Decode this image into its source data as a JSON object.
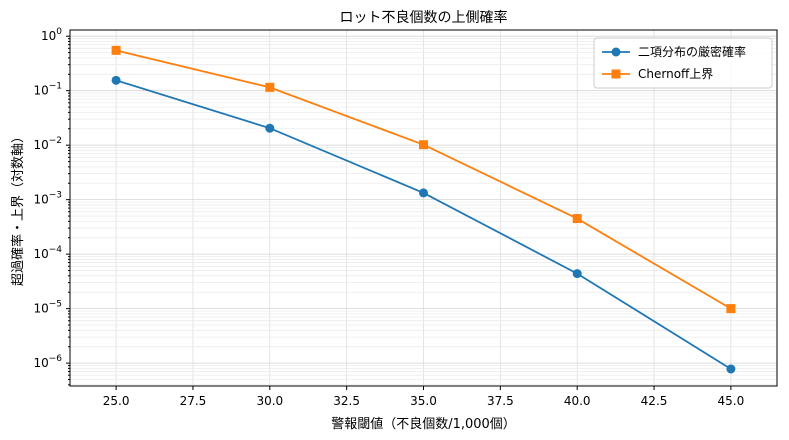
{
  "chart_data": {
    "type": "line",
    "title": "ロット不良個数の上側確率",
    "xlabel": "警報閾値（不良個数/1,000個）",
    "ylabel": "超過確率・上界（対数軸）",
    "x": [
      25.0,
      30.0,
      35.0,
      40.0,
      45.0
    ],
    "xlim": [
      23.5,
      46.5
    ],
    "xticks": [
      25.0,
      27.5,
      30.0,
      32.5,
      35.0,
      37.5,
      40.0,
      42.5,
      45.0
    ],
    "xtick_labels": [
      "25.0",
      "27.5",
      "30.0",
      "32.5",
      "35.0",
      "37.5",
      "40.0",
      "42.5",
      "45.0"
    ],
    "yscale": "log",
    "ylim": [
      3.8e-07,
      1.3
    ],
    "ytick_exponents": [
      0,
      -1,
      -2,
      -3,
      -4,
      -5,
      -6
    ],
    "ytick_base": "10",
    "grid": true,
    "legend_position": "top-right",
    "series": [
      {
        "name": "二項分布の厳密確率",
        "color": "#1f77b4",
        "marker": "circle",
        "values": [
          0.155,
          0.0205,
          0.00133,
          4.4e-05,
          7.8e-07
        ]
      },
      {
        "name": "Chernoff上界",
        "color": "#ff7f0e",
        "marker": "square",
        "values": [
          0.55,
          0.115,
          0.0102,
          0.00045,
          1e-05
        ]
      }
    ]
  }
}
